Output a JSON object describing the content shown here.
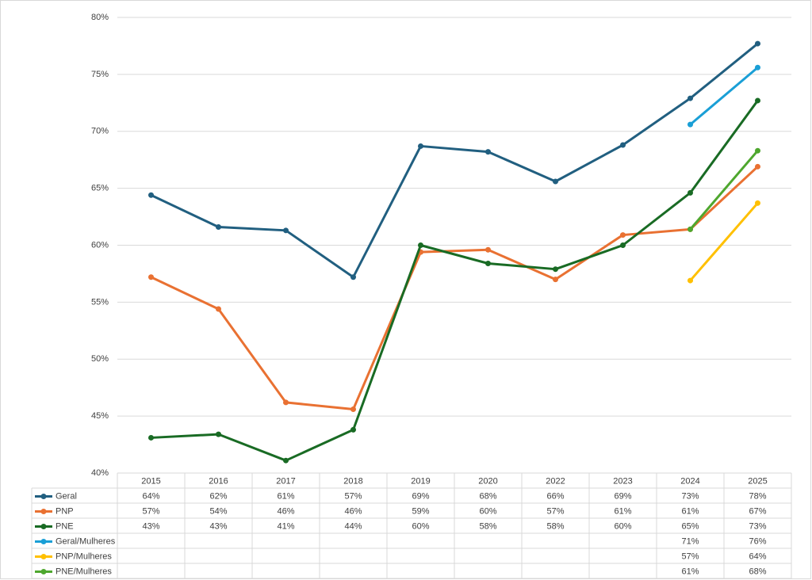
{
  "chart_data": {
    "type": "line",
    "categories": [
      "2015",
      "2016",
      "2017",
      "2018",
      "2019",
      "2020",
      "2022",
      "2023",
      "2024",
      "2025"
    ],
    "ylim": [
      40,
      80
    ],
    "yticks": [
      {
        "value": 40,
        "label": "40%"
      },
      {
        "value": 45,
        "label": "45%"
      },
      {
        "value": 50,
        "label": "50%"
      },
      {
        "value": 55,
        "label": "55%"
      },
      {
        "value": 60,
        "label": "60%"
      },
      {
        "value": 65,
        "label": "65%"
      },
      {
        "value": 70,
        "label": "70%"
      },
      {
        "value": 75,
        "label": "75%"
      },
      {
        "value": 80,
        "label": "80%"
      }
    ],
    "grid": true,
    "series": [
      {
        "name": "Geral",
        "color": "#215f80",
        "values": [
          64.4,
          61.6,
          61.3,
          57.2,
          68.7,
          68.2,
          65.6,
          68.8,
          72.9,
          77.7
        ],
        "value_labels": [
          "64%",
          "62%",
          "61%",
          "57%",
          "69%",
          "68%",
          "66%",
          "69%",
          "73%",
          "78%"
        ]
      },
      {
        "name": "PNP",
        "color": "#e97132",
        "values": [
          57.2,
          54.4,
          46.2,
          45.6,
          59.4,
          59.6,
          57.0,
          60.9,
          61.4,
          66.9
        ],
        "value_labels": [
          "57%",
          "54%",
          "46%",
          "46%",
          "59%",
          "60%",
          "57%",
          "61%",
          "61%",
          "67%"
        ]
      },
      {
        "name": "PNE",
        "color": "#196b24",
        "values": [
          43.1,
          43.4,
          41.1,
          43.8,
          60.0,
          58.4,
          57.9,
          60.0,
          64.6,
          72.7
        ],
        "value_labels": [
          "43%",
          "43%",
          "41%",
          "44%",
          "60%",
          "58%",
          "58%",
          "60%",
          "65%",
          "73%"
        ]
      },
      {
        "name": "Geral/Mulheres",
        "color": "#1a9fd6",
        "values": [
          null,
          null,
          null,
          null,
          null,
          null,
          null,
          null,
          70.6,
          75.6
        ],
        "value_labels": [
          null,
          null,
          null,
          null,
          null,
          null,
          null,
          null,
          "71%",
          "76%"
        ]
      },
      {
        "name": "PNP/Mulheres",
        "color": "#ffc000",
        "values": [
          null,
          null,
          null,
          null,
          null,
          null,
          null,
          null,
          56.9,
          63.7
        ],
        "value_labels": [
          null,
          null,
          null,
          null,
          null,
          null,
          null,
          null,
          "57%",
          "64%"
        ]
      },
      {
        "name": "PNE/Mulheres",
        "color": "#4ea72e",
        "values": [
          null,
          null,
          null,
          null,
          null,
          null,
          null,
          null,
          61.4,
          68.3
        ],
        "value_labels": [
          null,
          null,
          null,
          null,
          null,
          null,
          null,
          null,
          "61%",
          "68%"
        ]
      }
    ]
  }
}
